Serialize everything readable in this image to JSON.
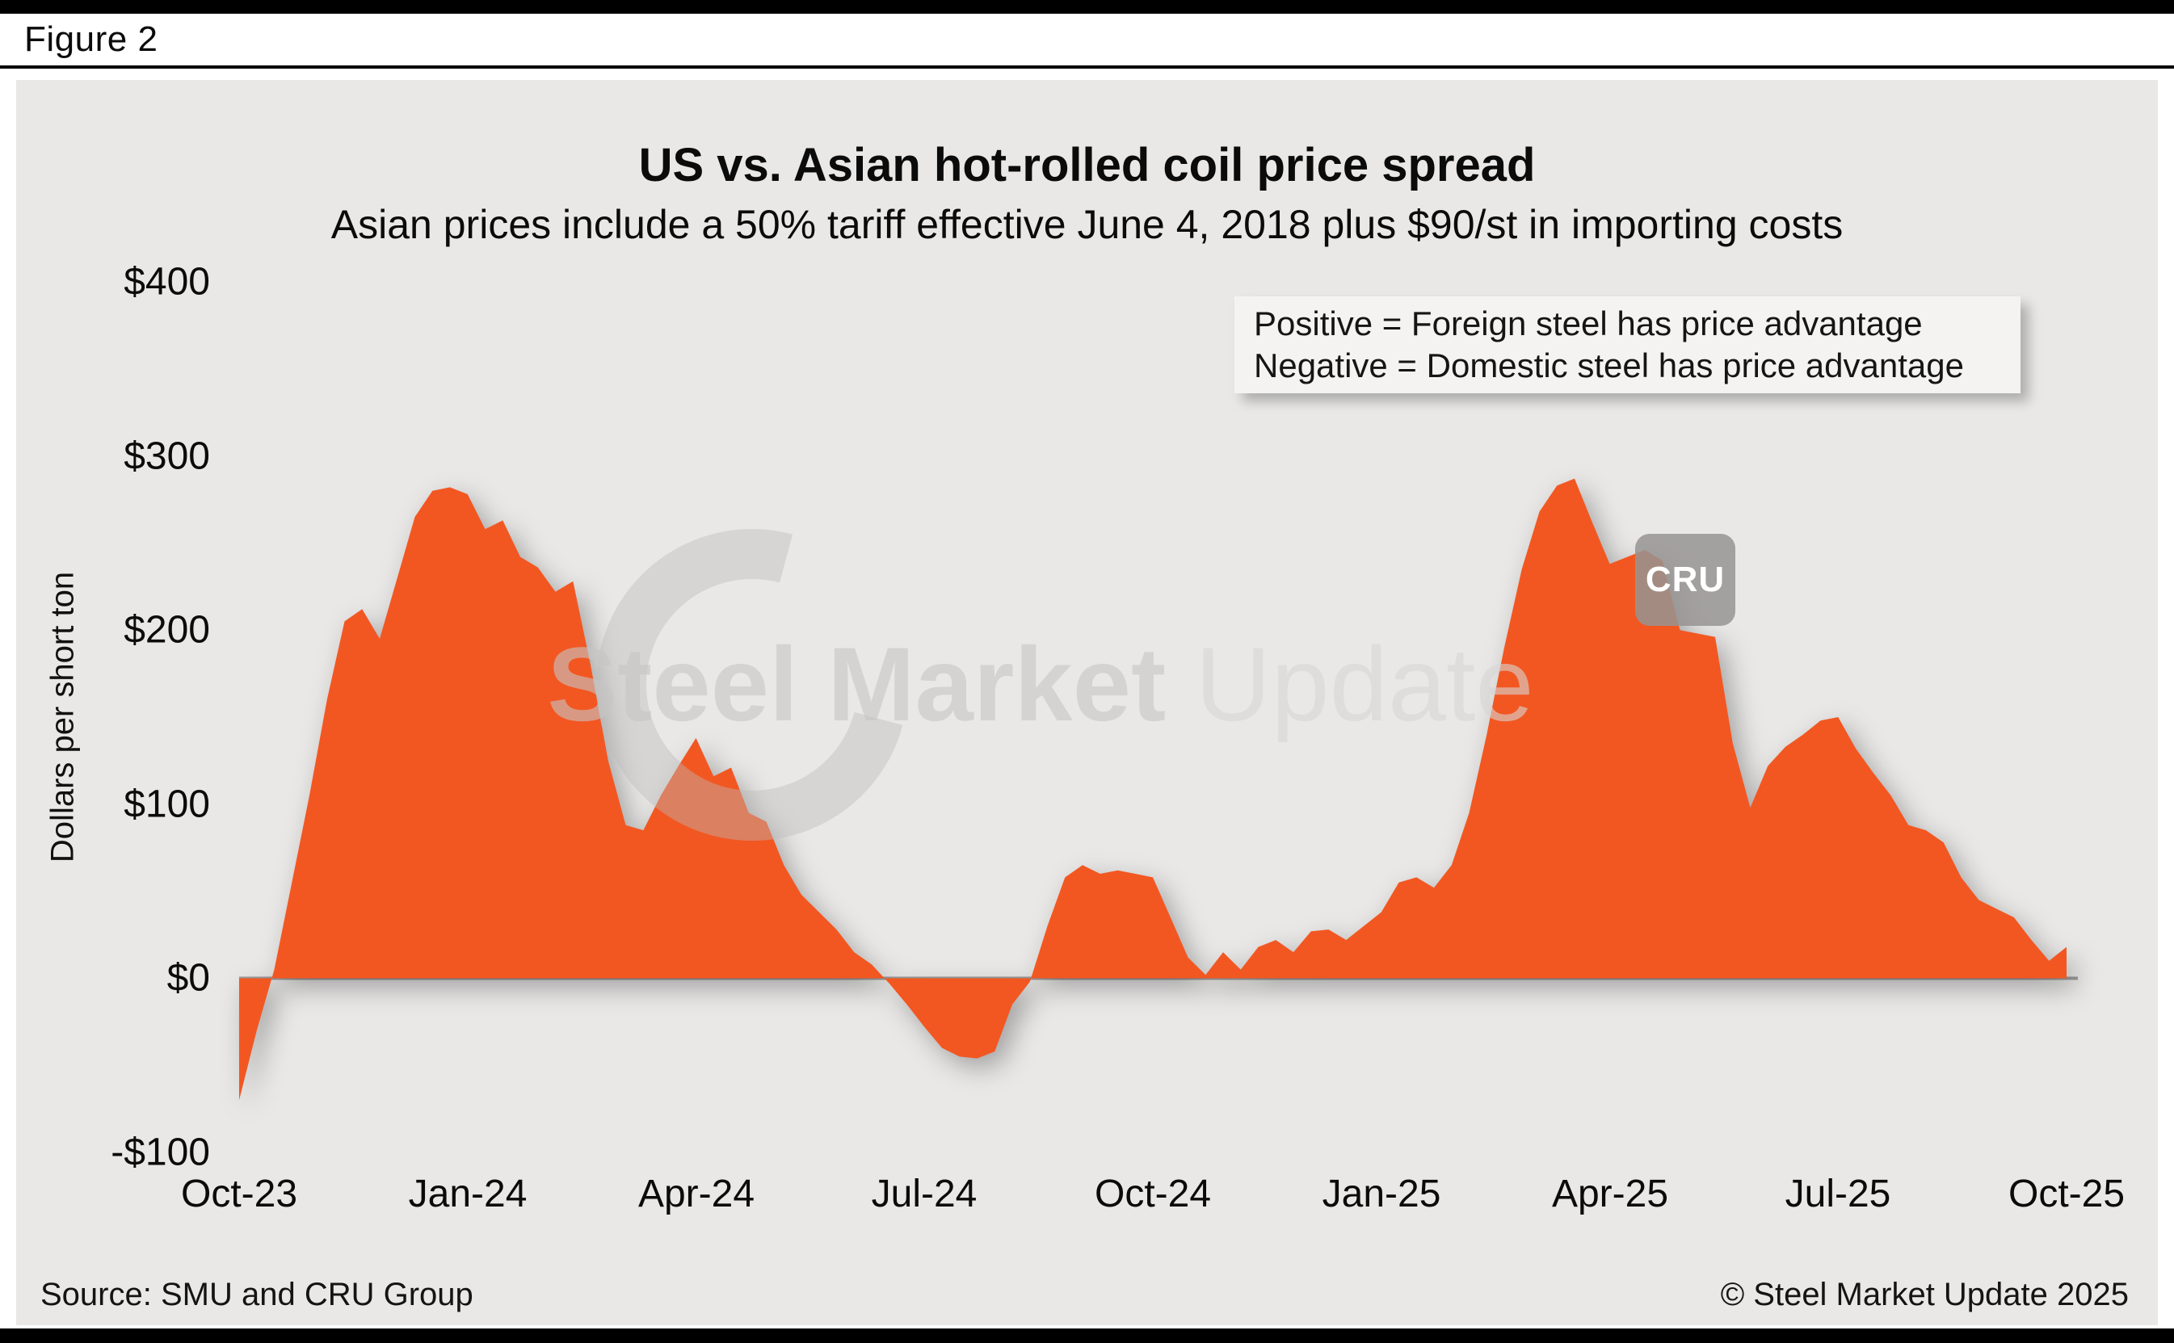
{
  "figure_label": "Figure 2",
  "chart_data": {
    "type": "area",
    "title": "US vs. Asian hot-rolled coil price spread",
    "subtitle": "Asian prices include a 50% tariff effective June 4, 2018 plus $90/st in importing costs",
    "ylabel": "Dollars per short ton",
    "series_name": "US minus Asian HRC price spread",
    "unit": "$ per short ton",
    "annotations": [
      "Positive = Foreign steel has price advantage",
      "Negative = Domestic steel has price advantage"
    ],
    "ylim": [
      -100,
      400
    ],
    "xlim": [
      0,
      104
    ],
    "x_unit": "weeks since Oct-23",
    "y_ticks": [
      {
        "label": "$400",
        "value": 400
      },
      {
        "label": "$300",
        "value": 300
      },
      {
        "label": "$200",
        "value": 200
      },
      {
        "label": "$100",
        "value": 100
      },
      {
        "label": "$0",
        "value": 0
      },
      {
        "label": "-$100",
        "value": -100
      }
    ],
    "x_ticks": [
      {
        "label": "Oct-23",
        "week": 0
      },
      {
        "label": "Jan-24",
        "week": 13
      },
      {
        "label": "Apr-24",
        "week": 26
      },
      {
        "label": "Jul-24",
        "week": 39
      },
      {
        "label": "Oct-24",
        "week": 52
      },
      {
        "label": "Jan-25",
        "week": 65
      },
      {
        "label": "Apr-25",
        "week": 78
      },
      {
        "label": "Jul-25",
        "week": 91
      },
      {
        "label": "Oct-25",
        "week": 104
      }
    ],
    "values": [
      -70,
      -30,
      5,
      55,
      105,
      160,
      205,
      212,
      195,
      230,
      265,
      280,
      282,
      278,
      258,
      263,
      242,
      236,
      222,
      228,
      180,
      125,
      88,
      85,
      105,
      122,
      138,
      116,
      121,
      95,
      90,
      65,
      48,
      38,
      28,
      15,
      8,
      -3,
      -15,
      -28,
      -40,
      -45,
      -46,
      -42,
      -15,
      -2,
      30,
      58,
      65,
      60,
      62,
      60,
      58,
      35,
      12,
      2,
      15,
      5,
      18,
      22,
      15,
      27,
      28,
      22,
      30,
      38,
      55,
      58,
      52,
      65,
      95,
      140,
      190,
      235,
      268,
      283,
      287,
      262,
      238,
      242,
      246,
      240,
      200,
      198,
      196,
      135,
      98,
      122,
      133,
      140,
      148,
      150,
      132,
      118,
      105,
      88,
      85,
      78,
      58,
      45,
      40,
      35,
      22,
      10,
      18
    ],
    "area_color": "#f25722",
    "zero_line_color": "#9b9b9b",
    "grid": "off",
    "legend_position": "top-right"
  },
  "watermark": {
    "text_bold": "Steel Market",
    "text_light": "Update",
    "badge": "CRU"
  },
  "footer": {
    "source": "Source: SMU and CRU Group",
    "copyright": "© Steel Market Update 2025"
  }
}
